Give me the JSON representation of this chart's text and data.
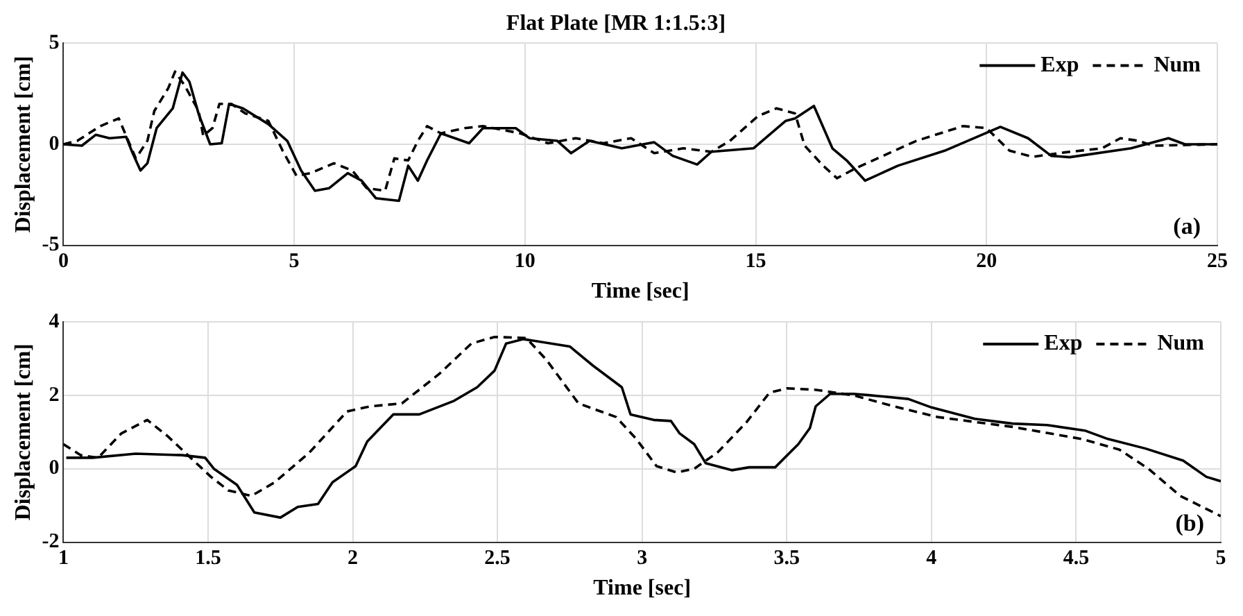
{
  "chart_data": [
    {
      "type": "line",
      "title": "Flat Plate [MR 1:1.5:3]",
      "xlabel": "Time [sec]",
      "ylabel": "Displacement [cm]",
      "xlim": [
        0,
        25
      ],
      "xticks": [
        0,
        5,
        10,
        15,
        20,
        25
      ],
      "ylim": [
        -5,
        5
      ],
      "yticks": [
        -5,
        0,
        5
      ],
      "grid": true,
      "legend": "top right",
      "marker": "none",
      "annotations": [
        "(a)"
      ],
      "series": [
        {
          "name": "Exp",
          "color": "#000000",
          "line_style": "solid",
          "x": [
            0,
            0.4,
            0.7,
            1.0,
            1.36,
            1.5,
            1.67,
            1.82,
            2.02,
            2.37,
            2.58,
            2.73,
            2.93,
            3.18,
            3.43,
            3.59,
            3.89,
            4.44,
            4.85,
            5.15,
            5.45,
            5.76,
            6.16,
            6.46,
            6.77,
            7.27,
            7.47,
            7.68,
            7.88,
            8.18,
            8.48,
            8.79,
            9.09,
            9.8,
            10.1,
            10.7,
            11.0,
            11.4,
            12.1,
            12.8,
            13.2,
            13.73,
            14.04,
            14.95,
            15.65,
            15.85,
            16.26,
            16.66,
            16.97,
            17.37,
            18.08,
            19.09,
            20.3,
            20.9,
            21.4,
            21.8,
            23.13,
            23.94,
            24.3,
            25
          ],
          "values": [
            0,
            -0.07,
            0.47,
            0.3,
            0.37,
            -0.44,
            -1.3,
            -0.94,
            0.8,
            1.78,
            3.55,
            3.1,
            1.5,
            0,
            0.05,
            2.0,
            1.78,
            1.0,
            0.17,
            -1.3,
            -2.3,
            -2.17,
            -1.43,
            -1.8,
            -2.67,
            -2.8,
            -1.06,
            -1.8,
            -0.8,
            0.54,
            0.3,
            0.05,
            0.8,
            0.8,
            0.3,
            0.17,
            -0.44,
            0.17,
            -0.2,
            0.1,
            -0.57,
            -1.0,
            -0.37,
            -0.2,
            1.16,
            1.28,
            1.9,
            -0.2,
            -0.8,
            -1.8,
            -1.06,
            -0.32,
            0.86,
            0.3,
            -0.57,
            -0.64,
            -0.2,
            0.3,
            0,
            0
          ]
        },
        {
          "name": "Num",
          "color": "#000000",
          "line_style": "dashed",
          "x": [
            0,
            0.3,
            0.8,
            1.2,
            1.36,
            1.57,
            1.82,
            1.97,
            2.27,
            2.42,
            2.63,
            2.93,
            3.03,
            3.23,
            3.38,
            3.64,
            3.94,
            4.44,
            4.75,
            5.05,
            5.35,
            5.86,
            6.26,
            6.57,
            6.97,
            7.17,
            7.47,
            7.68,
            7.88,
            8.18,
            8.69,
            9.09,
            9.9,
            10.5,
            11.1,
            11.7,
            12.3,
            12.8,
            13.43,
            14.04,
            14.44,
            15.05,
            15.45,
            15.85,
            16.06,
            16.46,
            16.76,
            17.17,
            18.48,
            19.49,
            20,
            20.5,
            21.0,
            21.7,
            22.5,
            22.9,
            23.3,
            23.6,
            25
          ],
          "values": [
            0,
            0.17,
            0.9,
            1.28,
            0.42,
            -0.7,
            0.17,
            1.65,
            2.77,
            3.6,
            2.9,
            1.65,
            0.42,
            0.8,
            2.0,
            2.0,
            1.53,
            1.16,
            -0.32,
            -1.56,
            -1.43,
            -0.94,
            -1.3,
            -2.17,
            -2.3,
            -0.7,
            -0.8,
            0.17,
            0.9,
            0.54,
            0.8,
            0.9,
            0.54,
            0.05,
            0.3,
            0.05,
            0.3,
            -0.44,
            -0.2,
            -0.37,
            0.17,
            1.4,
            1.78,
            1.53,
            -0.07,
            -1.06,
            -1.68,
            -1.18,
            0.17,
            0.9,
            0.8,
            -0.32,
            -0.62,
            -0.4,
            -0.2,
            0.3,
            0.17,
            -0.07,
            0
          ]
        }
      ]
    },
    {
      "type": "line",
      "xlabel": "Time [sec]",
      "ylabel": "Displacement [cm]",
      "xlim": [
        1,
        5
      ],
      "xticks": [
        1,
        1.5,
        2,
        2.5,
        3,
        3.5,
        4,
        4.5,
        5
      ],
      "ylim": [
        -2,
        4
      ],
      "yticks": [
        -2,
        0,
        2,
        4
      ],
      "grid": true,
      "legend": "top right",
      "marker": "none",
      "annotations": [
        "(b)"
      ],
      "series": [
        {
          "name": "Exp",
          "color": "#000000",
          "line_style": "solid",
          "x": [
            1.01,
            1.1,
            1.25,
            1.41,
            1.49,
            1.52,
            1.6,
            1.66,
            1.75,
            1.81,
            1.88,
            1.93,
            2.01,
            2.05,
            2.14,
            2.23,
            2.35,
            2.43,
            2.49,
            2.53,
            2.59,
            2.75,
            2.83,
            2.93,
            2.96,
            3.04,
            3.1,
            3.13,
            3.18,
            3.22,
            3.31,
            3.37,
            3.46,
            3.54,
            3.58,
            3.6,
            3.65,
            3.73,
            3.79,
            3.92,
            4.0,
            4.15,
            4.28,
            4.4,
            4.53,
            4.61,
            4.74,
            4.87,
            4.95,
            5.0
          ],
          "values": [
            0.3,
            0.3,
            0.41,
            0.37,
            0.3,
            0,
            -0.44,
            -1.19,
            -1.33,
            -1.04,
            -0.96,
            -0.37,
            0.07,
            0.74,
            1.48,
            1.48,
            1.85,
            2.22,
            2.67,
            3.41,
            3.53,
            3.33,
            2.81,
            2.22,
            1.48,
            1.33,
            1.3,
            0.96,
            0.67,
            0.15,
            -0.04,
            0.04,
            0.04,
            0.67,
            1.11,
            1.7,
            2.04,
            2.04,
            2.0,
            1.9,
            1.67,
            1.36,
            1.23,
            1.19,
            1.04,
            0.81,
            0.55,
            0.22,
            -0.22,
            -0.34
          ]
        },
        {
          "name": "Num",
          "color": "#000000",
          "line_style": "dashed",
          "x": [
            1.0,
            1.06,
            1.12,
            1.2,
            1.29,
            1.36,
            1.43,
            1.51,
            1.57,
            1.65,
            1.73,
            1.85,
            1.98,
            2.06,
            2.17,
            2.3,
            2.41,
            2.49,
            2.6,
            2.67,
            2.78,
            2.91,
            2.98,
            3.05,
            3.12,
            3.18,
            3.26,
            3.36,
            3.44,
            3.5,
            3.6,
            3.73,
            3.87,
            4.02,
            4.28,
            4.52,
            4.65,
            4.75,
            4.86,
            5.0
          ],
          "values": [
            0.67,
            0.37,
            0.3,
            0.96,
            1.33,
            0.89,
            0.37,
            -0.22,
            -0.59,
            -0.74,
            -0.37,
            0.44,
            1.56,
            1.7,
            1.78,
            2.59,
            3.41,
            3.59,
            3.56,
            2.96,
            1.78,
            1.41,
            0.81,
            0.07,
            -0.1,
            0,
            0.44,
            1.26,
            2.07,
            2.19,
            2.15,
            2.0,
            1.7,
            1.41,
            1.14,
            0.81,
            0.52,
            0,
            -0.74,
            -1.29
          ]
        }
      ]
    }
  ]
}
